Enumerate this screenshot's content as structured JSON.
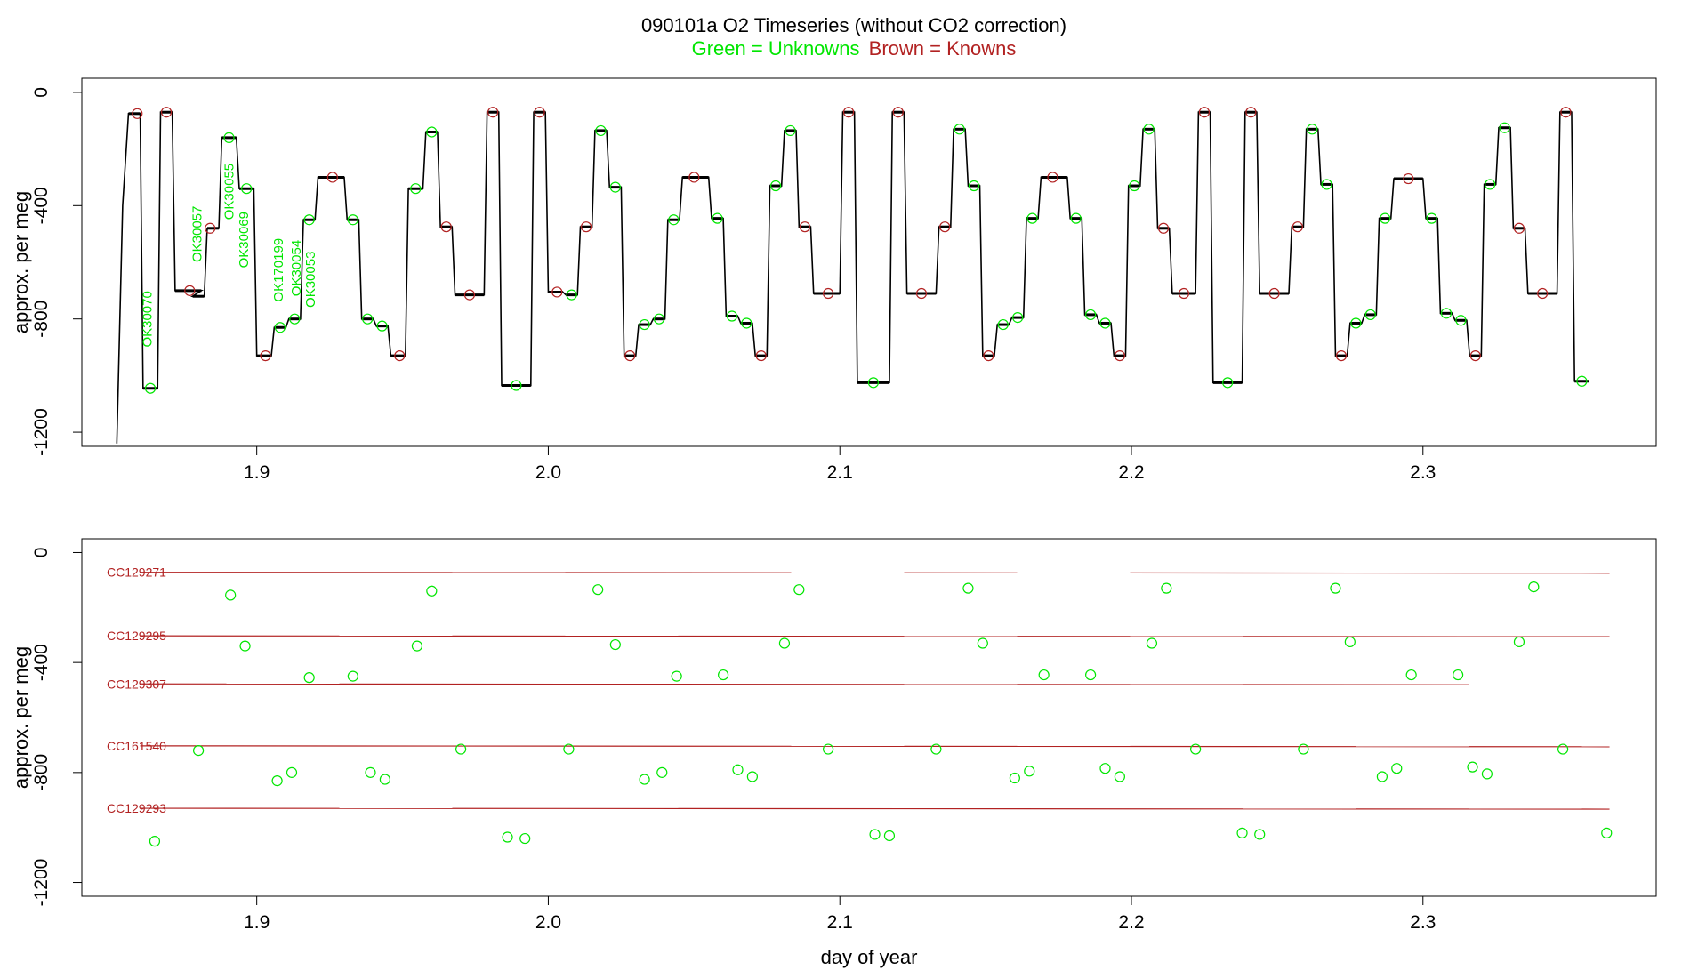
{
  "title": {
    "line1": "090101a   O2 Timeseries (without CO2 correction)",
    "unknowns_label": "Green = Unknowns",
    "knowns_label": "Brown = Knowns"
  },
  "colors": {
    "unknowns": "#00e600",
    "knowns": "#b22222",
    "trace": "#000000",
    "axis": "#000000"
  },
  "chart_data": [
    {
      "type": "line",
      "panel": "top",
      "xlabel": "",
      "ylabel": "approx. per meg",
      "xlim": [
        1.84,
        2.38
      ],
      "ylim": [
        -1250,
        50
      ],
      "x_ticks": [
        "1.9",
        "2.0",
        "2.1",
        "2.2",
        "2.3"
      ],
      "y_ticks": [
        "0",
        "-400",
        "-800",
        "-1200"
      ],
      "trace_levels": [
        {
          "x_start": 1.856,
          "x_end": 1.86,
          "y": -75
        },
        {
          "x_start": 1.861,
          "x_end": 1.866,
          "y": -1045
        },
        {
          "x_start": 1.867,
          "x_end": 1.871,
          "y": -70
        },
        {
          "x_start": 1.872,
          "x_end": 1.881,
          "y": -700
        },
        {
          "x_start": 1.878,
          "x_end": 1.882,
          "y": -720
        },
        {
          "x_start": 1.883,
          "x_end": 1.887,
          "y": -480
        },
        {
          "x_start": 1.888,
          "x_end": 1.893,
          "y": -160
        },
        {
          "x_start": 1.894,
          "x_end": 1.899,
          "y": -340
        },
        {
          "x_start": 1.9,
          "x_end": 1.905,
          "y": -930
        },
        {
          "x_start": 1.906,
          "x_end": 1.91,
          "y": -830
        },
        {
          "x_start": 1.911,
          "x_end": 1.915,
          "y": -800
        },
        {
          "x_start": 1.916,
          "x_end": 1.92,
          "y": -450
        },
        {
          "x_start": 1.921,
          "x_end": 1.93,
          "y": -300
        },
        {
          "x_start": 1.931,
          "x_end": 1.935,
          "y": -450
        },
        {
          "x_start": 1.936,
          "x_end": 1.94,
          "y": -800
        },
        {
          "x_start": 1.941,
          "x_end": 1.945,
          "y": -825
        },
        {
          "x_start": 1.946,
          "x_end": 1.951,
          "y": -930
        },
        {
          "x_start": 1.952,
          "x_end": 1.957,
          "y": -340
        },
        {
          "x_start": 1.958,
          "x_end": 1.962,
          "y": -140
        },
        {
          "x_start": 1.963,
          "x_end": 1.967,
          "y": -475
        },
        {
          "x_start": 1.968,
          "x_end": 1.978,
          "y": -715
        },
        {
          "x_start": 1.979,
          "x_end": 1.983,
          "y": -70
        },
        {
          "x_start": 1.984,
          "x_end": 1.994,
          "y": -1035
        },
        {
          "x_start": 1.995,
          "x_end": 1.999,
          "y": -70
        },
        {
          "x_start": 2.0,
          "x_end": 2.005,
          "y": -705
        },
        {
          "x_start": 2.006,
          "x_end": 2.01,
          "y": -715
        },
        {
          "x_start": 2.011,
          "x_end": 2.015,
          "y": -475
        },
        {
          "x_start": 2.016,
          "x_end": 2.02,
          "y": -135
        },
        {
          "x_start": 2.021,
          "x_end": 2.025,
          "y": -335
        },
        {
          "x_start": 2.026,
          "x_end": 2.03,
          "y": -930
        },
        {
          "x_start": 2.031,
          "x_end": 2.035,
          "y": -820
        },
        {
          "x_start": 2.036,
          "x_end": 2.04,
          "y": -800
        },
        {
          "x_start": 2.041,
          "x_end": 2.045,
          "y": -450
        },
        {
          "x_start": 2.046,
          "x_end": 2.055,
          "y": -300
        },
        {
          "x_start": 2.056,
          "x_end": 2.06,
          "y": -445
        },
        {
          "x_start": 2.061,
          "x_end": 2.065,
          "y": -790
        },
        {
          "x_start": 2.066,
          "x_end": 2.07,
          "y": -815
        },
        {
          "x_start": 2.071,
          "x_end": 2.075,
          "y": -930
        },
        {
          "x_start": 2.076,
          "x_end": 2.08,
          "y": -330
        },
        {
          "x_start": 2.081,
          "x_end": 2.085,
          "y": -135
        },
        {
          "x_start": 2.086,
          "x_end": 2.09,
          "y": -475
        },
        {
          "x_start": 2.091,
          "x_end": 2.1,
          "y": -710
        },
        {
          "x_start": 2.101,
          "x_end": 2.105,
          "y": -70
        },
        {
          "x_start": 2.106,
          "x_end": 2.117,
          "y": -1025
        },
        {
          "x_start": 2.118,
          "x_end": 2.122,
          "y": -70
        },
        {
          "x_start": 2.123,
          "x_end": 2.133,
          "y": -710
        },
        {
          "x_start": 2.134,
          "x_end": 2.138,
          "y": -475
        },
        {
          "x_start": 2.139,
          "x_end": 2.143,
          "y": -130
        },
        {
          "x_start": 2.144,
          "x_end": 2.148,
          "y": -330
        },
        {
          "x_start": 2.149,
          "x_end": 2.153,
          "y": -930
        },
        {
          "x_start": 2.154,
          "x_end": 2.158,
          "y": -820
        },
        {
          "x_start": 2.159,
          "x_end": 2.163,
          "y": -795
        },
        {
          "x_start": 2.164,
          "x_end": 2.168,
          "y": -445
        },
        {
          "x_start": 2.169,
          "x_end": 2.178,
          "y": -300
        },
        {
          "x_start": 2.179,
          "x_end": 2.183,
          "y": -445
        },
        {
          "x_start": 2.184,
          "x_end": 2.188,
          "y": -785
        },
        {
          "x_start": 2.189,
          "x_end": 2.193,
          "y": -815
        },
        {
          "x_start": 2.194,
          "x_end": 2.198,
          "y": -930
        },
        {
          "x_start": 2.199,
          "x_end": 2.203,
          "y": -330
        },
        {
          "x_start": 2.204,
          "x_end": 2.208,
          "y": -130
        },
        {
          "x_start": 2.209,
          "x_end": 2.213,
          "y": -480
        },
        {
          "x_start": 2.214,
          "x_end": 2.222,
          "y": -710
        },
        {
          "x_start": 2.223,
          "x_end": 2.227,
          "y": -70
        },
        {
          "x_start": 2.228,
          "x_end": 2.238,
          "y": -1025
        },
        {
          "x_start": 2.239,
          "x_end": 2.243,
          "y": -70
        },
        {
          "x_start": 2.244,
          "x_end": 2.254,
          "y": -710
        },
        {
          "x_start": 2.255,
          "x_end": 2.259,
          "y": -475
        },
        {
          "x_start": 2.26,
          "x_end": 2.264,
          "y": -130
        },
        {
          "x_start": 2.265,
          "x_end": 2.269,
          "y": -325
        },
        {
          "x_start": 2.27,
          "x_end": 2.274,
          "y": -930
        },
        {
          "x_start": 2.275,
          "x_end": 2.279,
          "y": -815
        },
        {
          "x_start": 2.28,
          "x_end": 2.284,
          "y": -785
        },
        {
          "x_start": 2.285,
          "x_end": 2.289,
          "y": -445
        },
        {
          "x_start": 2.29,
          "x_end": 2.3,
          "y": -305
        },
        {
          "x_start": 2.301,
          "x_end": 2.305,
          "y": -445
        },
        {
          "x_start": 2.306,
          "x_end": 2.31,
          "y": -780
        },
        {
          "x_start": 2.311,
          "x_end": 2.315,
          "y": -805
        },
        {
          "x_start": 2.316,
          "x_end": 2.32,
          "y": -930
        },
        {
          "x_start": 2.321,
          "x_end": 2.325,
          "y": -325
        },
        {
          "x_start": 2.326,
          "x_end": 2.33,
          "y": -125
        },
        {
          "x_start": 2.331,
          "x_end": 2.335,
          "y": -480
        },
        {
          "x_start": 2.336,
          "x_end": 2.346,
          "y": -710
        },
        {
          "x_start": 2.347,
          "x_end": 2.351,
          "y": -70
        },
        {
          "x_start": 2.352,
          "x_end": 2.357,
          "y": -1020
        }
      ],
      "knowns_points": [
        {
          "x": 1.859,
          "y": -75
        },
        {
          "x": 1.869,
          "y": -70
        },
        {
          "x": 1.877,
          "y": -700
        },
        {
          "x": 1.884,
          "y": -480
        },
        {
          "x": 1.903,
          "y": -930
        },
        {
          "x": 1.926,
          "y": -300
        },
        {
          "x": 1.949,
          "y": -930
        },
        {
          "x": 1.965,
          "y": -475
        },
        {
          "x": 1.973,
          "y": -715
        },
        {
          "x": 1.981,
          "y": -70
        },
        {
          "x": 1.997,
          "y": -70
        },
        {
          "x": 2.003,
          "y": -705
        },
        {
          "x": 2.013,
          "y": -475
        },
        {
          "x": 2.028,
          "y": -930
        },
        {
          "x": 2.05,
          "y": -300
        },
        {
          "x": 2.073,
          "y": -930
        },
        {
          "x": 2.088,
          "y": -475
        },
        {
          "x": 2.096,
          "y": -710
        },
        {
          "x": 2.103,
          "y": -70
        },
        {
          "x": 2.12,
          "y": -70
        },
        {
          "x": 2.128,
          "y": -710
        },
        {
          "x": 2.136,
          "y": -475
        },
        {
          "x": 2.151,
          "y": -930
        },
        {
          "x": 2.173,
          "y": -300
        },
        {
          "x": 2.196,
          "y": -930
        },
        {
          "x": 2.211,
          "y": -480
        },
        {
          "x": 2.218,
          "y": -710
        },
        {
          "x": 2.225,
          "y": -70
        },
        {
          "x": 2.241,
          "y": -70
        },
        {
          "x": 2.249,
          "y": -710
        },
        {
          "x": 2.257,
          "y": -475
        },
        {
          "x": 2.272,
          "y": -930
        },
        {
          "x": 2.295,
          "y": -305
        },
        {
          "x": 2.318,
          "y": -930
        },
        {
          "x": 2.333,
          "y": -480
        },
        {
          "x": 2.341,
          "y": -710
        },
        {
          "x": 2.349,
          "y": -70
        }
      ],
      "annotations": [
        {
          "text": "OK30070",
          "x": 1.864,
          "y": -900
        },
        {
          "text": "OK30057",
          "x": 1.881,
          "y": -600
        },
        {
          "text": "OK30055",
          "x": 1.892,
          "y": -450
        },
        {
          "text": "OK30069",
          "x": 1.897,
          "y": -620
        },
        {
          "text": "OK170199",
          "x": 1.909,
          "y": -740
        },
        {
          "text": "OK30054",
          "x": 1.915,
          "y": -720
        },
        {
          "text": "OK30053",
          "x": 1.92,
          "y": -760
        }
      ]
    },
    {
      "type": "scatter",
      "panel": "bottom",
      "xlabel": "day of year",
      "ylabel": "approx. per meg",
      "xlim": [
        1.84,
        2.38
      ],
      "ylim": [
        -1250,
        50
      ],
      "x_ticks": [
        "1.9",
        "2.0",
        "2.1",
        "2.2",
        "2.3"
      ],
      "y_ticks": [
        "0",
        "-400",
        "-800",
        "-1200"
      ],
      "reference_lines": [
        {
          "name": "CC129271",
          "y": -72
        },
        {
          "name": "CC129295",
          "y": -303
        },
        {
          "name": "CC129307",
          "y": -478
        },
        {
          "name": "CC161540",
          "y": -703
        },
        {
          "name": "CC129293",
          "y": -930
        }
      ],
      "unknowns_points": [
        {
          "x": 1.865,
          "y": -1050
        },
        {
          "x": 1.88,
          "y": -720
        },
        {
          "x": 1.891,
          "y": -155
        },
        {
          "x": 1.896,
          "y": -340
        },
        {
          "x": 1.907,
          "y": -830
        },
        {
          "x": 1.912,
          "y": -800
        },
        {
          "x": 1.918,
          "y": -455
        },
        {
          "x": 1.933,
          "y": -450
        },
        {
          "x": 1.939,
          "y": -800
        },
        {
          "x": 1.944,
          "y": -825
        },
        {
          "x": 1.955,
          "y": -340
        },
        {
          "x": 1.96,
          "y": -140
        },
        {
          "x": 1.97,
          "y": -715
        },
        {
          "x": 1.986,
          "y": -1035
        },
        {
          "x": 1.992,
          "y": -1040
        },
        {
          "x": 2.007,
          "y": -715
        },
        {
          "x": 2.017,
          "y": -135
        },
        {
          "x": 2.023,
          "y": -335
        },
        {
          "x": 2.033,
          "y": -825
        },
        {
          "x": 2.039,
          "y": -800
        },
        {
          "x": 2.044,
          "y": -450
        },
        {
          "x": 2.06,
          "y": -445
        },
        {
          "x": 2.065,
          "y": -790
        },
        {
          "x": 2.07,
          "y": -815
        },
        {
          "x": 2.081,
          "y": -330
        },
        {
          "x": 2.086,
          "y": -135
        },
        {
          "x": 2.096,
          "y": -715
        },
        {
          "x": 2.112,
          "y": -1025
        },
        {
          "x": 2.117,
          "y": -1030
        },
        {
          "x": 2.133,
          "y": -715
        },
        {
          "x": 2.144,
          "y": -130
        },
        {
          "x": 2.149,
          "y": -330
        },
        {
          "x": 2.16,
          "y": -820
        },
        {
          "x": 2.165,
          "y": -795
        },
        {
          "x": 2.17,
          "y": -445
        },
        {
          "x": 2.186,
          "y": -445
        },
        {
          "x": 2.191,
          "y": -785
        },
        {
          "x": 2.196,
          "y": -815
        },
        {
          "x": 2.207,
          "y": -330
        },
        {
          "x": 2.212,
          "y": -130
        },
        {
          "x": 2.222,
          "y": -715
        },
        {
          "x": 2.238,
          "y": -1020
        },
        {
          "x": 2.244,
          "y": -1025
        },
        {
          "x": 2.259,
          "y": -715
        },
        {
          "x": 2.27,
          "y": -130
        },
        {
          "x": 2.275,
          "y": -325
        },
        {
          "x": 2.286,
          "y": -815
        },
        {
          "x": 2.291,
          "y": -785
        },
        {
          "x": 2.296,
          "y": -445
        },
        {
          "x": 2.312,
          "y": -445
        },
        {
          "x": 2.317,
          "y": -780
        },
        {
          "x": 2.322,
          "y": -805
        },
        {
          "x": 2.333,
          "y": -325
        },
        {
          "x": 2.338,
          "y": -125
        },
        {
          "x": 2.348,
          "y": -715
        },
        {
          "x": 2.363,
          "y": -1020
        }
      ]
    }
  ]
}
